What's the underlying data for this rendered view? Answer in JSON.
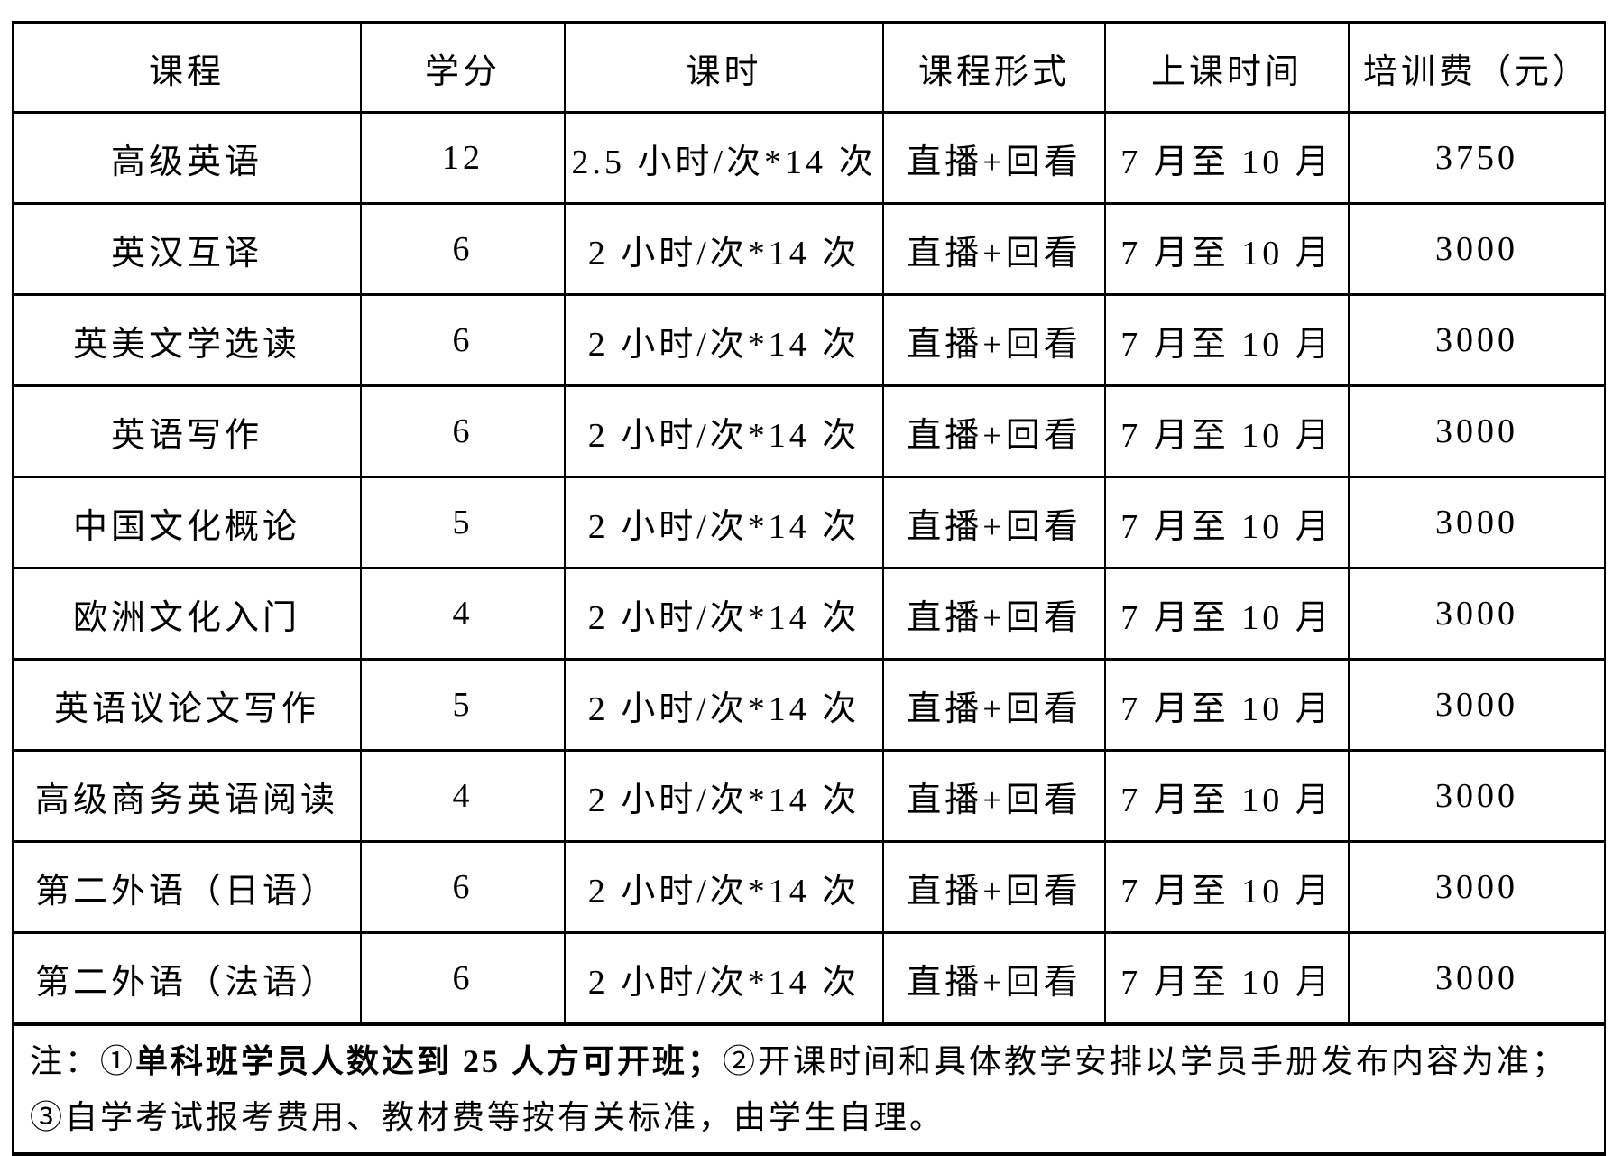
{
  "headers": [
    "课程",
    "学分",
    "课时",
    "课程形式",
    "上课时间",
    "培训费（元）"
  ],
  "rows": [
    [
      "高级英语",
      "12",
      "2.5 小时/次*14 次",
      "直播+回看",
      "7 月至 10 月",
      "3750"
    ],
    [
      "英汉互译",
      "6",
      "2 小时/次*14 次",
      "直播+回看",
      "7 月至 10 月",
      "3000"
    ],
    [
      "英美文学选读",
      "6",
      "2 小时/次*14 次",
      "直播+回看",
      "7 月至 10 月",
      "3000"
    ],
    [
      "英语写作",
      "6",
      "2 小时/次*14 次",
      "直播+回看",
      "7 月至 10 月",
      "3000"
    ],
    [
      "中国文化概论",
      "5",
      "2 小时/次*14 次",
      "直播+回看",
      "7 月至 10 月",
      "3000"
    ],
    [
      "欧洲文化入门",
      "4",
      "2 小时/次*14 次",
      "直播+回看",
      "7 月至 10 月",
      "3000"
    ],
    [
      "英语议论文写作",
      "5",
      "2 小时/次*14 次",
      "直播+回看",
      "7 月至 10 月",
      "3000"
    ],
    [
      "高级商务英语阅读",
      "4",
      "2 小时/次*14 次",
      "直播+回看",
      "7 月至 10 月",
      "3000"
    ],
    [
      "第二外语（日语）",
      "6",
      "2 小时/次*14 次",
      "直播+回看",
      "7 月至 10 月",
      "3000"
    ],
    [
      "第二外语（法语）",
      "6",
      "2 小时/次*14 次",
      "直播+回看",
      "7 月至 10 月",
      "3000"
    ]
  ],
  "note": {
    "prefix": "注：①",
    "bold": "单科班学员人数达到 25 人方可开班；",
    "rest": "②开课时间和具体教学安排以学员手册发布内容为准；③自学考试报考费用、教材费等按有关标准，由学生自理。"
  }
}
